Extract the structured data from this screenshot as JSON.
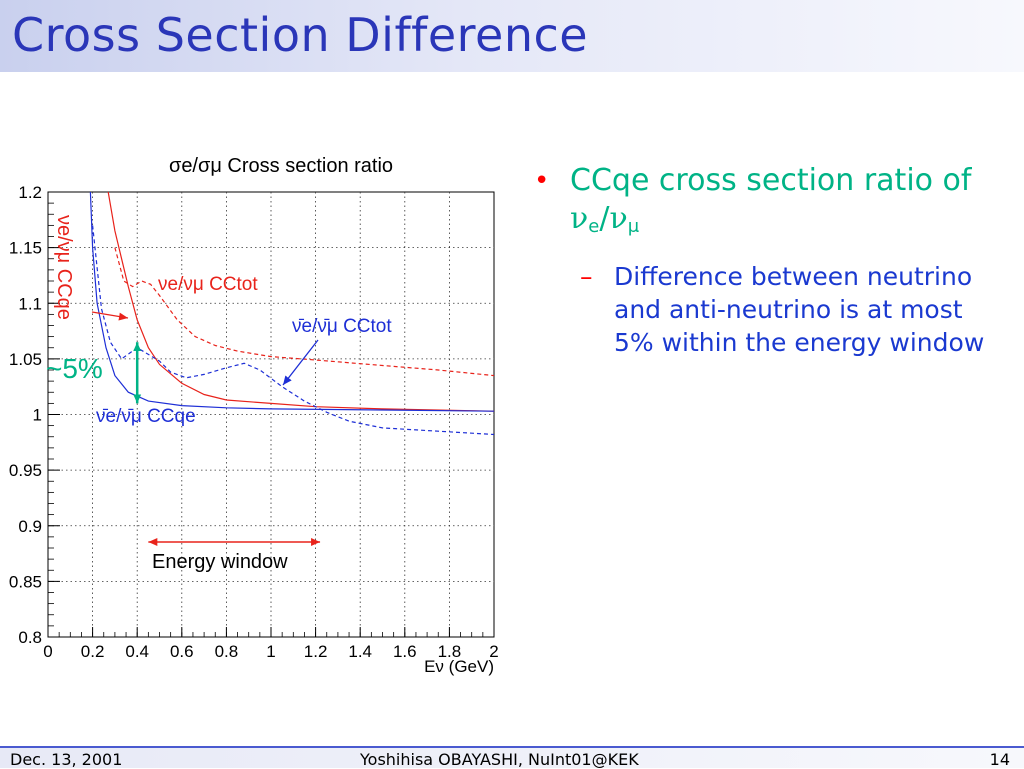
{
  "slide": {
    "title": "Cross Section Difference",
    "bullets": [
      {
        "text": "CCqe cross section ratio of",
        "ratio_num": "ν",
        "ratio_num_sub": "e",
        "ratio_slash": "/",
        "ratio_den": "ν",
        "ratio_den_sub": "μ",
        "sub": [
          {
            "text": "Difference between neutrino and anti-neutrino is at most 5% within the energy window"
          }
        ]
      }
    ]
  },
  "footer": {
    "date": "Dec. 13, 2001",
    "center": "Yoshihisa OBAYASHI, NuInt01@KEK",
    "page": "14"
  },
  "colors": {
    "title": "#2a36b8",
    "bullet_l1": "#00b386",
    "bullet_l2": "#1a39d0",
    "bullet_marker": "#ff0000",
    "neutrino": "#e8231b",
    "antineutrino": "#1e2fd6",
    "annotation_green": "#00b386"
  },
  "chart_data": {
    "type": "line",
    "title": "σe/σμ Cross section ratio",
    "xlabel": "Eν (GeV)",
    "xlim": [
      0,
      2
    ],
    "ylim": [
      0.8,
      1.2
    ],
    "x_ticks": [
      "0",
      "0.2",
      "0.4",
      "0.6",
      "0.8",
      "1",
      "1.2",
      "1.4",
      "1.6",
      "1.8",
      "2"
    ],
    "y_ticks": [
      "0.8",
      "0.85",
      "0.9",
      "0.95",
      "1",
      "1.05",
      "1.1",
      "1.15",
      "1.2"
    ],
    "series": [
      {
        "name": "νe/νμ CCqe",
        "style": "solid",
        "color": "#e8231b",
        "points": [
          [
            0.27,
            1.2
          ],
          [
            0.3,
            1.165
          ],
          [
            0.33,
            1.14
          ],
          [
            0.36,
            1.115
          ],
          [
            0.4,
            1.085
          ],
          [
            0.45,
            1.06
          ],
          [
            0.5,
            1.045
          ],
          [
            0.6,
            1.028
          ],
          [
            0.7,
            1.018
          ],
          [
            0.8,
            1.013
          ],
          [
            1.0,
            1.01
          ],
          [
            1.2,
            1.007
          ],
          [
            1.5,
            1.005
          ],
          [
            2.0,
            1.003
          ]
        ]
      },
      {
        "name": "νe/νμ CCtot",
        "style": "dashed",
        "color": "#e8231b",
        "points": [
          [
            0.3,
            1.15
          ],
          [
            0.34,
            1.12
          ],
          [
            0.38,
            1.115
          ],
          [
            0.42,
            1.12
          ],
          [
            0.46,
            1.117
          ],
          [
            0.5,
            1.107
          ],
          [
            0.58,
            1.085
          ],
          [
            0.66,
            1.07
          ],
          [
            0.75,
            1.062
          ],
          [
            0.85,
            1.057
          ],
          [
            1.0,
            1.052
          ],
          [
            1.2,
            1.049
          ],
          [
            1.5,
            1.044
          ],
          [
            1.75,
            1.04
          ],
          [
            2.0,
            1.035
          ]
        ]
      },
      {
        "name": "ν̄e/ν̄μ CCqe",
        "style": "solid",
        "color": "#1e2fd6",
        "points": [
          [
            0.19,
            1.2
          ],
          [
            0.2,
            1.15
          ],
          [
            0.22,
            1.1
          ],
          [
            0.26,
            1.06
          ],
          [
            0.3,
            1.035
          ],
          [
            0.36,
            1.02
          ],
          [
            0.45,
            1.012
          ],
          [
            0.6,
            1.008
          ],
          [
            0.8,
            1.006
          ],
          [
            1.0,
            1.005
          ],
          [
            1.5,
            1.004
          ],
          [
            2.0,
            1.003
          ]
        ]
      },
      {
        "name": "ν̄e/ν̄μ CCtot",
        "style": "dashed",
        "color": "#1e2fd6",
        "points": [
          [
            0.2,
            1.17
          ],
          [
            0.24,
            1.095
          ],
          [
            0.28,
            1.065
          ],
          [
            0.33,
            1.05
          ],
          [
            0.4,
            1.06
          ],
          [
            0.5,
            1.048
          ],
          [
            0.55,
            1.038
          ],
          [
            0.62,
            1.033
          ],
          [
            0.7,
            1.036
          ],
          [
            0.8,
            1.042
          ],
          [
            0.88,
            1.046
          ],
          [
            0.95,
            1.04
          ],
          [
            1.05,
            1.025
          ],
          [
            1.15,
            1.012
          ],
          [
            1.25,
            1.002
          ],
          [
            1.35,
            0.994
          ],
          [
            1.5,
            0.988
          ],
          [
            1.75,
            0.985
          ],
          [
            2.0,
            0.982
          ]
        ]
      }
    ],
    "labels": {
      "nue_cctot": "νe/νμ CCtot",
      "anue_cctot": "ν̄e/ν̄μ CCtot",
      "nue_ccqe": "νe/νμ CCqe",
      "anue_ccqe": "ν̄e/ν̄μ CCqe",
      "diff": "~5%",
      "energy_window": "Energy window"
    },
    "energy_window": [
      0.45,
      1.22
    ],
    "diff_arrow": {
      "x": 0.4,
      "y": [
        1.01,
        1.065
      ]
    }
  }
}
